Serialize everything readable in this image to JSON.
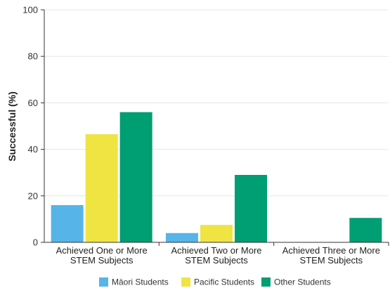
{
  "chart_data": {
    "type": "bar",
    "title": "",
    "xlabel": "",
    "ylabel": "Successful (%)",
    "ylim": [
      0,
      100
    ],
    "yticks": [
      0,
      20,
      40,
      60,
      80,
      100
    ],
    "grid": true,
    "legend_position": "bottom",
    "categories": [
      [
        "Achieved One or More",
        "STEM Subjects"
      ],
      [
        "Achieved Two or More",
        "STEM Subjects"
      ],
      [
        "Achieved Three or More",
        "STEM Subjects"
      ]
    ],
    "series": [
      {
        "name": "Māori Students",
        "color": "#56b4e9",
        "values": [
          16,
          4,
          0
        ]
      },
      {
        "name": "Pacific Students",
        "color": "#f0e442",
        "values": [
          46.5,
          7.5,
          0
        ]
      },
      {
        "name": "Other Students",
        "color": "#009e73",
        "values": [
          56,
          29,
          10.5
        ]
      }
    ]
  }
}
